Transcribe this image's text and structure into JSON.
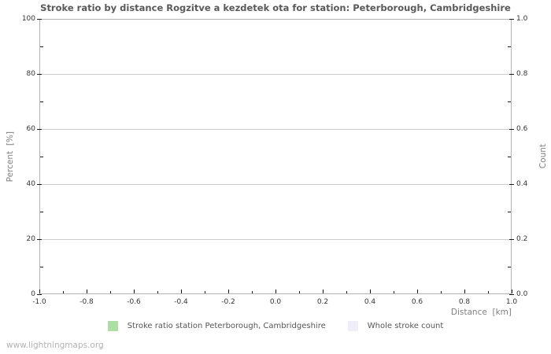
{
  "title": "Stroke ratio by distance Rogzitve a kezdetek ota for station: Peterborough, Cambridgeshire",
  "watermark": "www.lightningmaps.org",
  "colors": {
    "title": "#595959",
    "axis_label": "#808080",
    "tick_label": "#333333",
    "tick_mark": "#1a1a1a",
    "frame": "#b4b4b4",
    "grid": "#cccccc",
    "legend_text": "#555555",
    "stroke_ratio_green": "#afdda6",
    "whole_count_lavender": "#eeeefa",
    "watermark": "#b2b2b2",
    "background": "#ffffff"
  },
  "chart_data": {
    "type": "line",
    "title": "Stroke ratio by distance Rogzitve a kezdetek ota for station: Peterborough, Cambridgeshire",
    "xlabel": "Distance  [km]",
    "ylabel_left": "Percent  [%]",
    "ylabel_right": "Count",
    "xlim": [
      -1.0,
      1.0
    ],
    "ylim_left": [
      0,
      100
    ],
    "ylim_right": [
      0.0,
      1.0
    ],
    "x_tick_values": [
      -1.0,
      -0.8,
      -0.6,
      -0.4,
      -0.2,
      0.0,
      0.2,
      0.4,
      0.6,
      0.8,
      1.0
    ],
    "x_tick_labels": [
      "-1.0",
      "-0.8",
      "-0.6",
      "-0.4",
      "-0.2",
      "0.0",
      "0.2",
      "0.4",
      "0.6",
      "0.8",
      "1.0"
    ],
    "x_minor_tick_values": [
      -0.9,
      -0.7,
      -0.5,
      -0.3,
      -0.1,
      0.1,
      0.3,
      0.5,
      0.7,
      0.9
    ],
    "y_left_tick_values": [
      0,
      20,
      40,
      60,
      80,
      100
    ],
    "y_left_tick_labels": [
      "0",
      "20",
      "40",
      "60",
      "80",
      "100"
    ],
    "y_left_minor_tick_values": [
      10,
      30,
      50,
      70,
      90
    ],
    "y_right_tick_values": [
      0.0,
      0.2,
      0.4,
      0.6,
      0.8,
      1.0
    ],
    "y_right_tick_labels": [
      "0.0",
      "0.2",
      "0.4",
      "0.6",
      "0.8",
      "1.0"
    ],
    "grid": "horizontal-only",
    "legend_position": "bottom-center",
    "series": [
      {
        "name": "Stroke ratio station Peterborough, Cambridgeshire",
        "color": "#afdda6",
        "axis": "left",
        "x": [],
        "values": []
      },
      {
        "name": "Whole stroke count",
        "color": "#eeeefa",
        "axis": "right",
        "x": [],
        "values": []
      }
    ],
    "notes": "plot area is empty - no data points rendered"
  }
}
